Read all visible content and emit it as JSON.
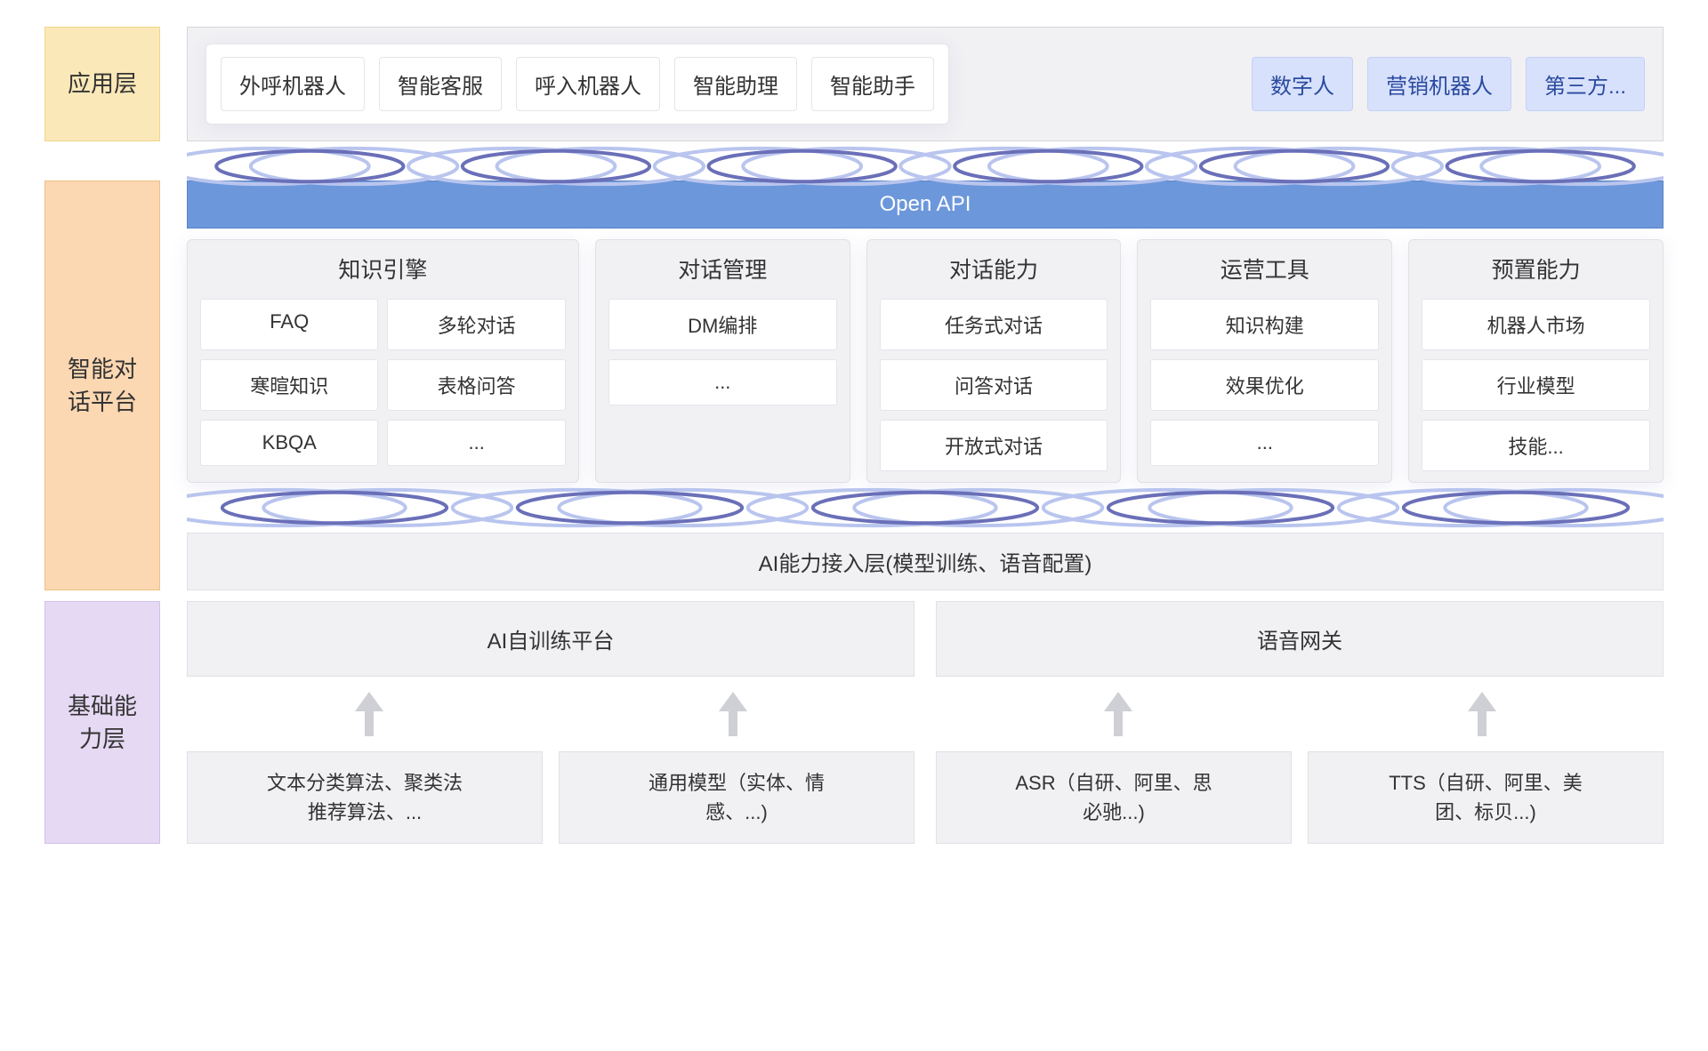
{
  "colors": {
    "label_app": "#fbe8b8",
    "label_platform": "#fbd7b2",
    "label_base": "#e6d9f4",
    "panel_bg": "#f1f1f4",
    "panel_border": "#e0e0e6",
    "chip_bg": "#ffffff",
    "chip_border": "#e5e5ea",
    "chip_blue_bg": "#d7e1fb",
    "chip_blue_text": "#2b4aa0",
    "openapi_bg": "#6c97db",
    "openapi_text": "#ffffff",
    "arrow_color": "#cfcfd6",
    "wave_back": "#b9c5ee",
    "wave_front": "#6a6fb8",
    "text_color": "#333333"
  },
  "typography": {
    "side_label_fontsize": 26,
    "chip_fontsize": 24,
    "module_title_fontsize": 25,
    "mbox_fontsize": 22,
    "bbox_fontsize": 22
  },
  "layer1": {
    "label": "应用层",
    "primary_apps": [
      "外呼机器人",
      "智能客服",
      "呼入机器人",
      "智能助理",
      "智能助手"
    ],
    "external_apps": [
      "数字人",
      "营销机器人",
      "第三方..."
    ]
  },
  "layer2": {
    "label": "智能对\n话平台",
    "open_api": "Open API",
    "modules": [
      {
        "title": "知识引擎",
        "cols": 2,
        "wide": true,
        "items": [
          "FAQ",
          "多轮对话",
          "寒暄知识",
          "表格问答",
          "KBQA",
          "..."
        ]
      },
      {
        "title": "对话管理",
        "cols": 1,
        "items": [
          "DM编排",
          "..."
        ]
      },
      {
        "title": "对话能力",
        "cols": 1,
        "items": [
          "任务式对话",
          "问答对话",
          "开放式对话"
        ]
      },
      {
        "title": "运营工具",
        "cols": 1,
        "items": [
          "知识构建",
          "效果优化",
          "..."
        ]
      },
      {
        "title": "预置能力",
        "cols": 1,
        "items": [
          "机器人市场",
          "行业模型",
          "技能..."
        ]
      }
    ],
    "ai_access": "AI能力接入层(模型训练、语音配置)"
  },
  "layer3": {
    "label": "基础能\n力层",
    "platforms": [
      "AI自训练平台",
      "语音网关"
    ],
    "bottom": [
      [
        "文本分类算法、聚类法\n推荐算法、...",
        "通用模型（实体、情\n感、...)"
      ],
      [
        "ASR（自研、阿里、思\n必驰...)",
        "TTS（自研、阿里、美\n团、标贝...)"
      ]
    ]
  },
  "waves": {
    "count_row1": 6,
    "count_row2": 5,
    "stroke_width": 4
  }
}
